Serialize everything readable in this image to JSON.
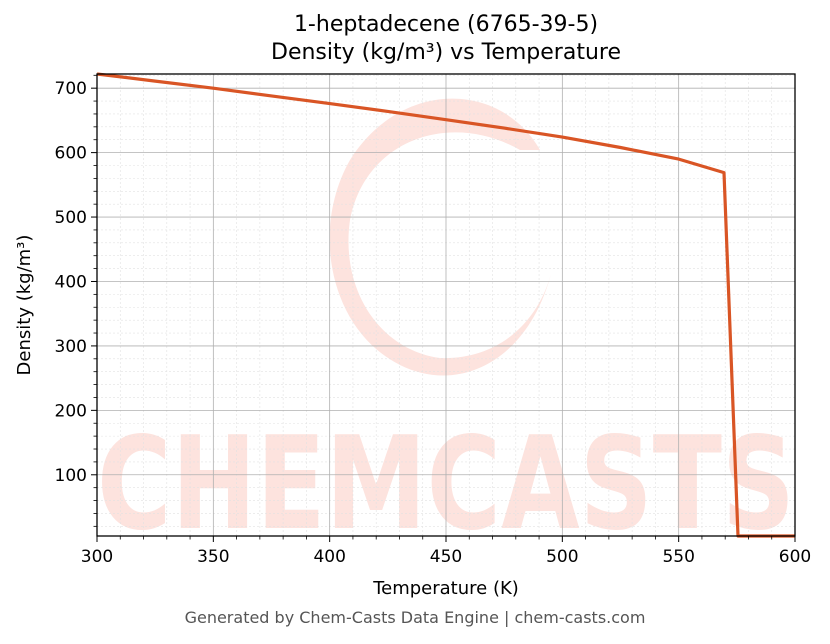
{
  "chart_data": {
    "type": "line",
    "title": "1-heptadecene (6765-39-5)",
    "subtitle": "Density (kg/m³) vs Temperature",
    "xlabel": "Temperature (K)",
    "ylabel": "Density (kg/m³)",
    "xlim": [
      300,
      600
    ],
    "ylim": [
      5,
      722
    ],
    "xticks": [
      300,
      350,
      400,
      450,
      500,
      550,
      600
    ],
    "yticks": [
      100,
      200,
      300,
      400,
      500,
      600,
      700
    ],
    "grid": true,
    "series": [
      {
        "color": "#d95525",
        "x": [
          300,
          325,
          350,
          375,
          400,
          425,
          450,
          475,
          500,
          525,
          550,
          569.5,
          575.5,
          600
        ],
        "y": [
          722,
          711,
          700,
          688,
          676,
          664,
          651,
          638,
          624,
          608,
          590,
          569,
          5,
          5
        ]
      }
    ]
  },
  "watermark": {
    "text": "CHEMCASTS",
    "color": "#fde3de"
  },
  "footer": "Generated by Chem-Casts Data Engine | chem-casts.com"
}
